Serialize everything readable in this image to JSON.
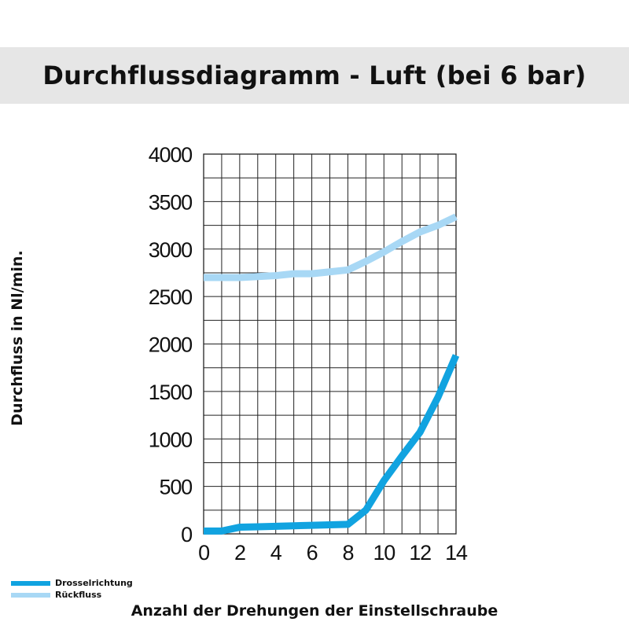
{
  "title": "Durchflussdiagramm - Luft (bei 6 bar)",
  "chart_data": {
    "type": "line",
    "title": "Durchflussdiagramm - Luft (bei 6 bar)",
    "xlabel": "Anzahl der Drehungen der Einstellschraube",
    "ylabel": "Durchfluss in Nl/min.",
    "xlim": [
      0,
      14
    ],
    "ylim": [
      0,
      4000
    ],
    "x_ticks": [
      0,
      2,
      4,
      6,
      8,
      10,
      12,
      14
    ],
    "y_ticks": [
      0,
      500,
      1000,
      1500,
      2000,
      2500,
      3000,
      3500,
      4000
    ],
    "grid": true,
    "legend_position": "bottom-left",
    "series": [
      {
        "name": "Drosselrichtung",
        "color": "#11a3e0",
        "x": [
          0,
          1,
          2,
          3,
          4,
          5,
          6,
          7,
          8,
          9,
          10,
          11,
          12,
          13,
          14
        ],
        "y": [
          30,
          30,
          70,
          75,
          80,
          85,
          90,
          95,
          100,
          250,
          560,
          820,
          1070,
          1440,
          1880
        ]
      },
      {
        "name": "Rückfluss",
        "color": "#a8d8f5",
        "x": [
          0,
          1,
          2,
          3,
          4,
          5,
          6,
          7,
          8,
          9,
          10,
          11,
          12,
          13,
          14
        ],
        "y": [
          2700,
          2700,
          2700,
          2710,
          2720,
          2740,
          2740,
          2760,
          2780,
          2870,
          2970,
          3080,
          3180,
          3250,
          3340
        ]
      }
    ]
  }
}
